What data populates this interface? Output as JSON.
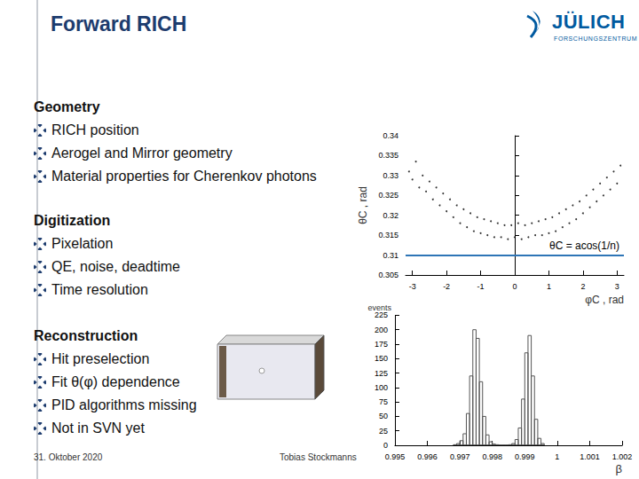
{
  "header": {
    "title": "Forward RICH",
    "logo": {
      "name": "JÜLICH",
      "subtitle": "FORSCHUNGSZENTRUM"
    }
  },
  "sections": [
    {
      "heading": "Geometry",
      "items": [
        "RICH position",
        "Aerogel and Mirror geometry",
        "Material properties for Cherenkov photons"
      ]
    },
    {
      "heading": "Digitization",
      "items": [
        "Pixelation",
        "QE, noise, deadtime",
        "Time resolution"
      ]
    },
    {
      "heading": "Reconstruction",
      "items": [
        "Hit preselection",
        "Fit θ(φ) dependence",
        "PID algorithms missing",
        "Not in SVN yet"
      ]
    }
  ],
  "footer": {
    "date": "31. Oktober 2020",
    "author": "Tobias Stockmanns"
  },
  "chart_data": [
    {
      "type": "scatter",
      "x_label": "φC , rad",
      "y_label": "θC , rad",
      "color": "#000000",
      "x": [
        -3.1,
        -3.0,
        -2.9,
        -2.8,
        -2.7,
        -2.6,
        -2.5,
        -2.4,
        -2.3,
        -2.2,
        -2.1,
        -2.0,
        -1.9,
        -1.8,
        -1.7,
        -1.6,
        -1.5,
        -1.4,
        -1.3,
        -1.2,
        -1.1,
        -1.0,
        -0.9,
        -0.8,
        -0.7,
        -0.6,
        -0.5,
        -0.4,
        -0.3,
        -0.2,
        -0.1,
        0.0,
        0.1,
        0.2,
        0.3,
        0.4,
        0.5,
        0.6,
        0.7,
        0.8,
        0.9,
        1.0,
        1.1,
        1.2,
        1.3,
        1.4,
        1.5,
        1.6,
        1.7,
        1.8,
        1.9,
        2.0,
        2.1,
        2.2,
        2.3,
        2.4,
        2.5,
        2.6,
        2.7,
        2.8,
        2.9,
        3.0,
        3.1
      ],
      "values": [
        0.331,
        0.329,
        0.3335,
        0.327,
        0.33,
        0.326,
        0.3285,
        0.324,
        0.327,
        0.3225,
        0.3255,
        0.321,
        0.324,
        0.3195,
        0.3225,
        0.318,
        0.3215,
        0.317,
        0.3205,
        0.316,
        0.3195,
        0.3155,
        0.319,
        0.315,
        0.3185,
        0.3145,
        0.318,
        0.3145,
        0.3175,
        0.314,
        0.3175,
        0.3145,
        0.318,
        0.314,
        0.3175,
        0.3145,
        0.318,
        0.315,
        0.3185,
        0.315,
        0.319,
        0.3155,
        0.3195,
        0.316,
        0.3205,
        0.317,
        0.3215,
        0.318,
        0.3225,
        0.319,
        0.3235,
        0.3205,
        0.325,
        0.322,
        0.3265,
        0.3235,
        0.328,
        0.325,
        0.3295,
        0.3265,
        0.331,
        0.328,
        0.3325
      ],
      "xlim": [
        -3.2,
        3.2
      ],
      "xticks": [
        -3,
        -2,
        -1,
        0,
        1,
        2,
        3
      ],
      "ylim": [
        0.305,
        0.34
      ],
      "yticks": [
        0.305,
        0.31,
        0.315,
        0.32,
        0.325,
        0.33,
        0.335,
        0.34
      ],
      "annotation": {
        "text": "θC = acos(1/n)",
        "y": 0.3105,
        "color": "#2e75b6"
      }
    },
    {
      "type": "histogram",
      "x_label": "β",
      "y_label": "events",
      "bins": [
        0.9968,
        0.9969,
        0.997,
        0.9971,
        0.9972,
        0.9973,
        0.9974,
        0.9975,
        0.9976,
        0.9977,
        0.9978,
        0.9979,
        0.998,
        0.9981,
        0.9982,
        0.9983,
        0.9984,
        0.9985,
        0.9986,
        0.9987,
        0.9988,
        0.9989,
        0.999,
        0.9991,
        0.9992,
        0.9993,
        0.9994,
        0.9995,
        0.9996
      ],
      "series": [
        {
          "color": "#555555",
          "values": [
            1,
            3,
            8,
            20,
            55,
            120,
            200,
            185,
            110,
            50,
            18,
            6,
            2,
            1,
            0,
            0,
            0,
            0,
            0,
            0,
            0,
            0,
            0,
            0,
            0,
            0,
            0,
            0
          ]
        },
        {
          "color": "#555555",
          "values": [
            0,
            0,
            0,
            0,
            0,
            0,
            0,
            0,
            0,
            0,
            0,
            0,
            0,
            0,
            0,
            0,
            0,
            1,
            3,
            10,
            30,
            80,
            160,
            190,
            120,
            45,
            12,
            3
          ]
        }
      ],
      "xlim": [
        0.995,
        1.002
      ],
      "xticks": [
        0.995,
        0.996,
        0.997,
        0.998,
        0.999,
        1,
        1.001,
        1.002
      ],
      "ylim": [
        0,
        225
      ],
      "yticks": [
        0,
        25,
        50,
        75,
        100,
        125,
        150,
        175,
        200,
        225
      ]
    }
  ]
}
